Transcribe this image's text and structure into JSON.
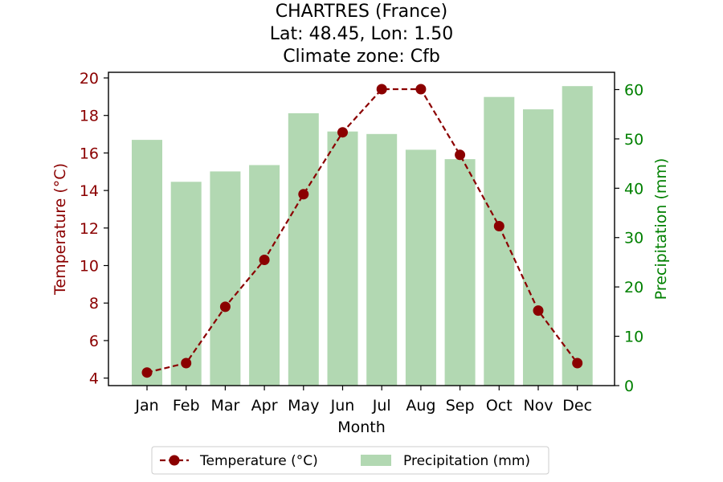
{
  "chart_data": {
    "type": "bar+line",
    "title_lines": [
      "CHARTRES (France)",
      "Lat: 48.45, Lon: 1.50",
      "Climate zone: Cfb"
    ],
    "xlabel": "Month",
    "ylabel_left": "Temperature (°C)",
    "ylabel_right": "Precipitation (mm)",
    "categories": [
      "Jan",
      "Feb",
      "Mar",
      "Apr",
      "May",
      "Jun",
      "Jul",
      "Aug",
      "Sep",
      "Oct",
      "Nov",
      "Dec"
    ],
    "temperature": {
      "name": "Temperature (°C)",
      "values": [
        4.3,
        4.8,
        7.8,
        10.3,
        13.8,
        17.1,
        19.4,
        19.4,
        15.9,
        12.1,
        7.6,
        4.8
      ],
      "color": "#8b0000",
      "style": "dashed",
      "marker": "circle"
    },
    "precipitation": {
      "name": "Precipitation (mm)",
      "values": [
        49.8,
        41.3,
        43.4,
        44.7,
        55.2,
        51.5,
        51.0,
        47.8,
        45.9,
        58.5,
        56.0,
        60.7
      ],
      "color": "#b2d8b2"
    },
    "ylim_left": [
      3.6,
      20.3
    ],
    "yticks_left": [
      4,
      6,
      8,
      10,
      12,
      14,
      16,
      18,
      20
    ],
    "ylim_right": [
      0,
      63.5
    ],
    "yticks_right": [
      0,
      10,
      20,
      30,
      40,
      50,
      60
    ],
    "left_axis_color": "#8b0000",
    "right_axis_color": "#008000",
    "legend_position": "bottom-center",
    "grid": false
  }
}
